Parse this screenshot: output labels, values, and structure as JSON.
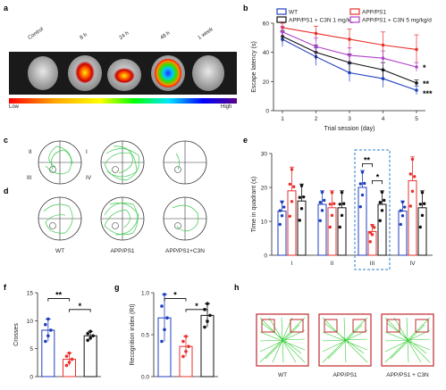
{
  "panels": {
    "a": "a",
    "b": "b",
    "c": "c",
    "d": "d",
    "e": "e",
    "f": "f",
    "g": "g",
    "h": "h"
  },
  "panel_a": {
    "labels": [
      "Control",
      "8 h",
      "24 h",
      "48 h",
      "1 week"
    ],
    "colorbar_low": "Low",
    "colorbar_high": "High"
  },
  "panel_c": {
    "quadrants": [
      "I",
      "II",
      "III",
      "IV"
    ]
  },
  "panel_d": {
    "groups": [
      "WT",
      "APP/PS1",
      "APP/PS1+C3N"
    ]
  },
  "panel_h": {
    "groups": [
      "WT",
      "APP/PS1",
      "APP/PS1 + C3N"
    ]
  },
  "colors": {
    "wt": "#1f3fbf",
    "app": "#e8302c",
    "c3n_1": "#111111",
    "c3n_5": "#b040c8",
    "track": "#2ecc40",
    "box": "#c0282c"
  },
  "chart_data": [
    {
      "id": "b",
      "type": "line",
      "ylabel": "Escape latency (s)",
      "xlabel": "Trial session (day)",
      "x": [
        1,
        2,
        3,
        4,
        5
      ],
      "ylim": [
        0,
        60
      ],
      "yticks": [
        0,
        20,
        40,
        60
      ],
      "series": [
        {
          "name": "WT",
          "color": "#1f3fbf",
          "values": [
            49,
            37,
            26,
            22,
            14
          ],
          "err": [
            5,
            6,
            6,
            6,
            3
          ]
        },
        {
          "name": "APP/PS1",
          "color": "#e8302c",
          "values": [
            57,
            53,
            49,
            45,
            42
          ],
          "err": [
            3,
            5,
            7,
            9,
            10
          ]
        },
        {
          "name": "APP/PS1 + C3N 1 mg/kg/d",
          "color": "#111111",
          "values": [
            51,
            40,
            33,
            28,
            19
          ],
          "err": [
            4,
            5,
            6,
            5,
            2
          ]
        },
        {
          "name": "APP/PS1 + C3N 5 mg/kg/d",
          "color": "#b040c8",
          "values": [
            54,
            44,
            38,
            36,
            30
          ],
          "err": [
            4,
            6,
            5,
            5,
            3
          ]
        }
      ],
      "annotations": [
        "*",
        "**",
        "***"
      ]
    },
    {
      "id": "e",
      "type": "bar",
      "ylabel": "Time in quadrant (s)",
      "categories": [
        "I",
        "II",
        "III",
        "IV"
      ],
      "ylim": [
        0,
        30
      ],
      "yticks": [
        0,
        10,
        20,
        30
      ],
      "series": [
        {
          "name": "WT",
          "color": "#1f3fbf",
          "values": [
            13,
            15,
            20,
            13
          ],
          "err": [
            3,
            4,
            5,
            3
          ]
        },
        {
          "name": "APP/PS1",
          "color": "#e8302c",
          "values": [
            19,
            14,
            7,
            22
          ],
          "err": [
            7,
            5,
            2,
            7
          ]
        },
        {
          "name": "APP/PS1+C3N",
          "color": "#111111",
          "values": [
            16,
            14,
            15,
            14
          ],
          "err": [
            5,
            5,
            4,
            5
          ]
        }
      ],
      "annotations": [
        "**",
        "*"
      ]
    },
    {
      "id": "f",
      "type": "bar",
      "ylabel": "Crosses",
      "ylim": [
        0,
        15
      ],
      "yticks": [
        0,
        5,
        10,
        15
      ],
      "series": [
        {
          "name": "WT",
          "color": "#1f3fbf",
          "values": [
            8.3
          ],
          "err": [
            2.0
          ]
        },
        {
          "name": "APP/PS1",
          "color": "#e8302c",
          "values": [
            3.1
          ],
          "err": [
            1.1
          ]
        },
        {
          "name": "APP/PS1+C3N",
          "color": "#111111",
          "values": [
            7.3
          ],
          "err": [
            0.8
          ]
        }
      ],
      "annotations": [
        "**",
        "*"
      ]
    },
    {
      "id": "g",
      "type": "bar",
      "ylabel": "Recognition index (RI)",
      "ylim": [
        0,
        1.0
      ],
      "yticks": [
        0.0,
        0.5,
        1.0
      ],
      "series": [
        {
          "name": "WT",
          "color": "#1f3fbf",
          "values": [
            0.7
          ],
          "err": [
            0.28
          ]
        },
        {
          "name": "APP/PS1",
          "color": "#e8302c",
          "values": [
            0.36
          ],
          "err": [
            0.12
          ]
        },
        {
          "name": "APP/PS1+C3N",
          "color": "#111111",
          "values": [
            0.73
          ],
          "err": [
            0.14
          ]
        }
      ],
      "annotations": [
        "*",
        "*"
      ]
    }
  ]
}
